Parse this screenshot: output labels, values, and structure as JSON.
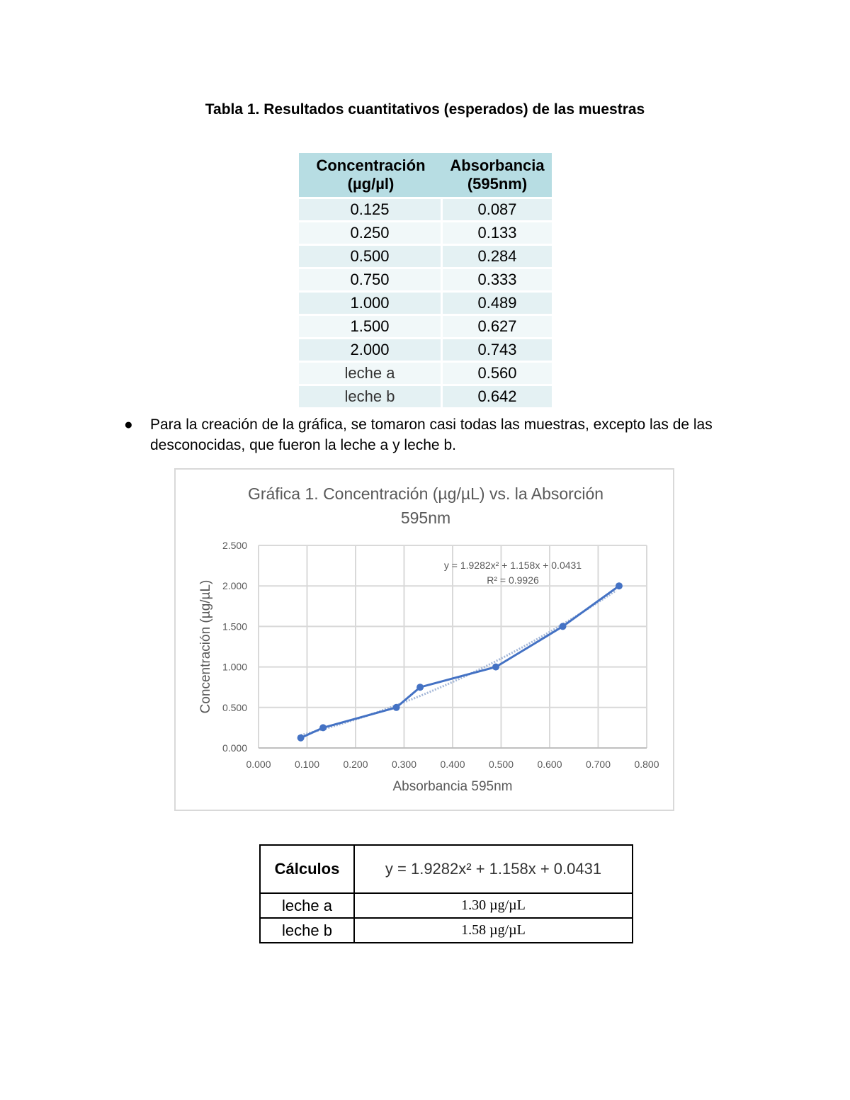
{
  "title": "Tabla 1. Resultados cuantitativos (esperados) de las muestras",
  "table1": {
    "headers": [
      [
        "Concentración",
        "(µg/µl)"
      ],
      [
        "Absorbancia",
        "(595nm)"
      ]
    ],
    "rows": [
      [
        "0.125",
        "0.087"
      ],
      [
        "0.250",
        "0.133"
      ],
      [
        "0.500",
        "0.284"
      ],
      [
        "0.750",
        "0.333"
      ],
      [
        "1.000",
        "0.489"
      ],
      [
        "1.500",
        "0.627"
      ],
      [
        "2.000",
        "0.743"
      ],
      [
        "leche a",
        "0.560"
      ],
      [
        "leche b",
        "0.642"
      ]
    ]
  },
  "bullet": "Para la creación de la gráfica, se tomaron casi todas las muestras, excepto las de las desconocidas, que fueron la leche a y leche b.",
  "chart_data": {
    "type": "scatter",
    "title": [
      "Gráfica 1. Concentración (µg/µL) vs. la Absorción",
      "595nm"
    ],
    "xlabel": "Absorbancia 595nm",
    "ylabel": "Concentración (µg/µL)",
    "xlim": [
      0,
      0.8
    ],
    "ylim": [
      0,
      2.5
    ],
    "xticks": [
      "0.000",
      "0.100",
      "0.200",
      "0.300",
      "0.400",
      "0.500",
      "0.600",
      "0.700",
      "0.800"
    ],
    "yticks": [
      "0.000",
      "0.500",
      "1.000",
      "1.500",
      "2.000",
      "2.500"
    ],
    "grid": true,
    "x": [
      0.087,
      0.133,
      0.284,
      0.333,
      0.489,
      0.627,
      0.743
    ],
    "y": [
      0.125,
      0.25,
      0.5,
      0.75,
      1.0,
      1.5,
      2.0
    ],
    "trendline": {
      "type": "polynomial",
      "coefficients": [
        1.9282,
        1.158,
        0.0431
      ],
      "equation": "y = 1.9282x² + 1.158x + 0.0431",
      "r2": "R² = 0.9926"
    },
    "colors": {
      "series": "#4472c4",
      "trend": "#a5b8d8",
      "grid": "#d9d9d9"
    }
  },
  "calc": {
    "header": "Cálculos",
    "equation": "y = 1.9282x² + 1.158x + 0.0431",
    "rows": [
      [
        "leche a",
        "1.30 µg/µL"
      ],
      [
        "leche b",
        "1.58 µg/µL"
      ]
    ]
  }
}
